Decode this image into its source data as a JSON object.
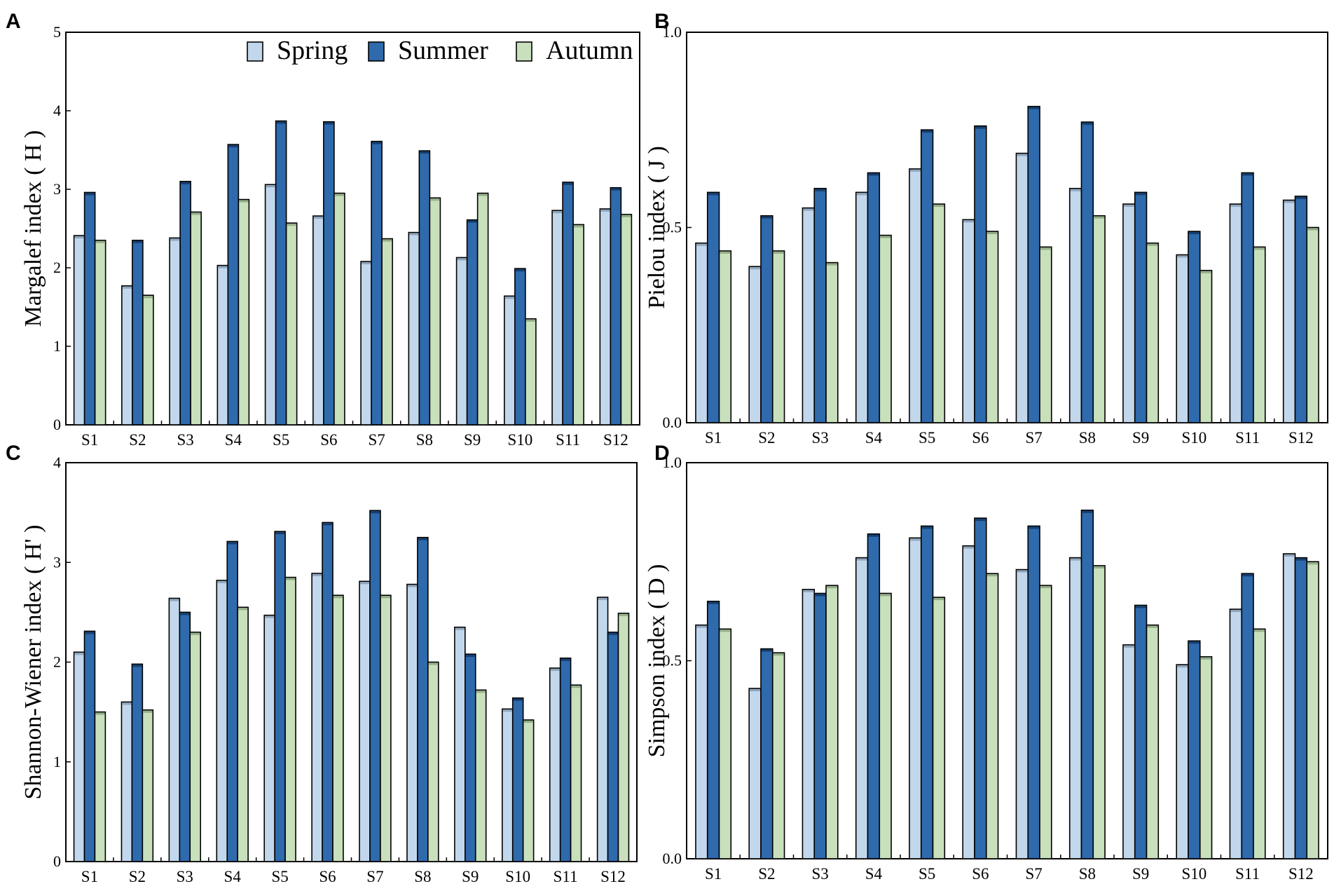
{
  "legend": {
    "items": [
      {
        "label": "Spring",
        "color": "#c2d7ec"
      },
      {
        "label": "Summer",
        "color": "#2e6aac"
      },
      {
        "label": "Autumn",
        "color": "#c8e0bc"
      }
    ]
  },
  "chart_data": [
    {
      "panel": "A",
      "type": "bar",
      "title": "",
      "ylabel": "Margalef index ( H )",
      "xlabel": "",
      "ylim": [
        0,
        5
      ],
      "yticks": [
        "0",
        "1",
        "2",
        "3",
        "4",
        "5"
      ],
      "categories": [
        "S1",
        "S2",
        "S3",
        "S4",
        "S5",
        "S6",
        "S7",
        "S8",
        "S9",
        "S10",
        "S11",
        "S12"
      ],
      "series": [
        {
          "name": "Spring",
          "values": [
            2.41,
            1.77,
            2.38,
            2.03,
            3.06,
            2.66,
            2.08,
            2.45,
            2.13,
            1.64,
            2.73,
            2.75
          ]
        },
        {
          "name": "Summer",
          "values": [
            2.96,
            2.35,
            3.1,
            3.57,
            3.87,
            3.86,
            3.61,
            3.49,
            2.61,
            1.99,
            3.09,
            3.02
          ]
        },
        {
          "name": "Autumn",
          "values": [
            2.35,
            1.65,
            2.71,
            2.87,
            2.57,
            2.95,
            2.37,
            2.89,
            2.95,
            1.35,
            2.55,
            2.68
          ]
        }
      ]
    },
    {
      "panel": "B",
      "type": "bar",
      "title": "",
      "ylabel": "Pielou index ( J )",
      "xlabel": "",
      "ylim": [
        0,
        1
      ],
      "yticks": [
        "0.0",
        "0.5",
        "1.0"
      ],
      "categories": [
        "S1",
        "S2",
        "S3",
        "S4",
        "S5",
        "S6",
        "S7",
        "S8",
        "S9",
        "S10",
        "S11",
        "S12"
      ],
      "series": [
        {
          "name": "Spring",
          "values": [
            0.46,
            0.4,
            0.55,
            0.59,
            0.65,
            0.52,
            0.69,
            0.6,
            0.56,
            0.43,
            0.56,
            0.57
          ]
        },
        {
          "name": "Summer",
          "values": [
            0.59,
            0.53,
            0.6,
            0.64,
            0.75,
            0.76,
            0.81,
            0.77,
            0.59,
            0.49,
            0.64,
            0.58
          ]
        },
        {
          "name": "Autumn",
          "values": [
            0.44,
            0.44,
            0.41,
            0.48,
            0.56,
            0.49,
            0.45,
            0.53,
            0.46,
            0.39,
            0.45,
            0.5
          ]
        }
      ]
    },
    {
      "panel": "C",
      "type": "bar",
      "title": "",
      "ylabel": "Shannon-Wiener index ( H' )",
      "xlabel": "",
      "ylim": [
        0,
        4
      ],
      "yticks": [
        "0",
        "1",
        "2",
        "3",
        "4"
      ],
      "categories": [
        "S1",
        "S2",
        "S3",
        "S4",
        "S5",
        "S6",
        "S7",
        "S8",
        "S9",
        "S10",
        "S11",
        "S12"
      ],
      "series": [
        {
          "name": "Spring",
          "values": [
            2.1,
            1.6,
            2.64,
            2.82,
            2.47,
            2.89,
            2.81,
            2.78,
            2.35,
            1.53,
            1.94,
            2.65
          ]
        },
        {
          "name": "Summer",
          "values": [
            2.31,
            1.98,
            2.5,
            3.21,
            3.31,
            3.4,
            3.52,
            3.25,
            2.08,
            1.64,
            2.04,
            2.3
          ]
        },
        {
          "name": "Autumn",
          "values": [
            1.5,
            1.52,
            2.3,
            2.55,
            2.85,
            2.67,
            2.67,
            2.0,
            1.72,
            1.42,
            1.77,
            2.49
          ]
        }
      ]
    },
    {
      "panel": "D",
      "type": "bar",
      "title": "",
      "ylabel": "Simpson index ( D )",
      "xlabel": "",
      "ylim": [
        0,
        1
      ],
      "yticks": [
        "0.0",
        "0.5",
        "1.0"
      ],
      "categories": [
        "S1",
        "S2",
        "S3",
        "S4",
        "S5",
        "S6",
        "S7",
        "S8",
        "S9",
        "S10",
        "S11",
        "S12"
      ],
      "series": [
        {
          "name": "Spring",
          "values": [
            0.59,
            0.43,
            0.68,
            0.76,
            0.81,
            0.79,
            0.73,
            0.76,
            0.54,
            0.49,
            0.63,
            0.77
          ]
        },
        {
          "name": "Summer",
          "values": [
            0.65,
            0.53,
            0.67,
            0.82,
            0.84,
            0.86,
            0.84,
            0.88,
            0.64,
            0.55,
            0.72,
            0.76
          ]
        },
        {
          "name": "Autumn",
          "values": [
            0.58,
            0.52,
            0.69,
            0.67,
            0.66,
            0.72,
            0.69,
            0.74,
            0.59,
            0.51,
            0.58,
            0.75
          ]
        }
      ]
    }
  ]
}
